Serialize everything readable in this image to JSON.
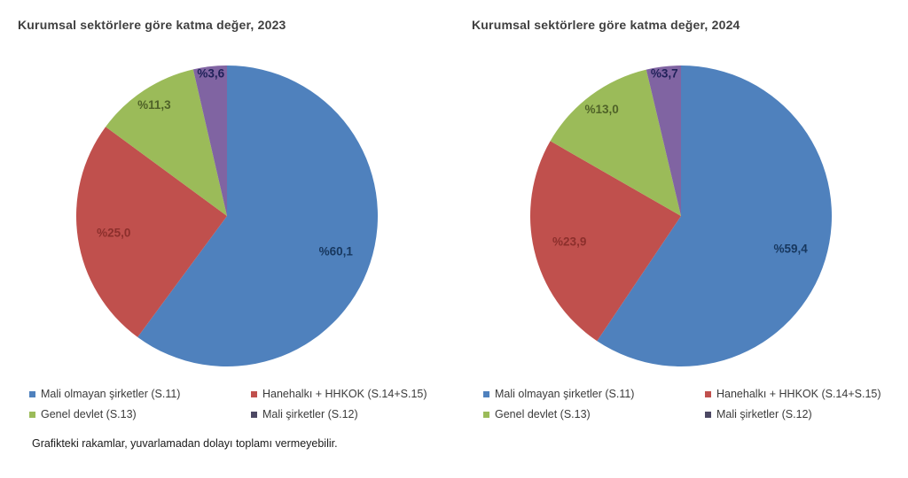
{
  "page": {
    "background": "#ffffff",
    "title_color": "#404040"
  },
  "footnote": "Grafikteki rakamlar, yuvarlamadan dolayı toplamı vermeyebilir.",
  "chart_data": [
    {
      "type": "pie",
      "title": "Kurumsal sektörlere göre katma değer, 2023",
      "labels": [
        "Mali olmayan şirketler (S.11)",
        "Hanehalkı + HHKOK (S.14+S.15)",
        "Genel devlet (S.13)",
        "Mali şirketler (S.12)"
      ],
      "values": [
        60.1,
        25.0,
        11.3,
        3.6
      ],
      "value_labels": [
        "%60,1",
        "%25,0",
        "%11,3",
        "%3,6"
      ],
      "colors": [
        "#4F81BD",
        "#C0504D",
        "#9BBB59",
        "#8064A2"
      ],
      "label_colors": [
        "#17375E",
        "#8C2F2C",
        "#4F6228",
        "#1F2159"
      ],
      "legend_marker_colors": [
        "#4F81BD",
        "#C0504D",
        "#9BBB59",
        "#4C4863"
      ],
      "start_angle_deg": 0,
      "direction": "clockwise",
      "legend_position": "bottom"
    },
    {
      "type": "pie",
      "title": "Kurumsal sektörlere göre katma değer, 2024",
      "labels": [
        "Mali olmayan şirketler (S.11)",
        "Hanehalkı + HHKOK (S.14+S.15)",
        "Genel devlet (S.13)",
        "Mali şirketler (S.12)"
      ],
      "values": [
        59.4,
        23.9,
        13.0,
        3.7
      ],
      "value_labels": [
        "%59,4",
        "%23,9",
        "%13,0",
        "%3,7"
      ],
      "colors": [
        "#4F81BD",
        "#C0504D",
        "#9BBB59",
        "#8064A2"
      ],
      "label_colors": [
        "#17375E",
        "#8C2F2C",
        "#4F6228",
        "#1F2159"
      ],
      "legend_marker_colors": [
        "#4F81BD",
        "#C0504D",
        "#9BBB59",
        "#4C4863"
      ],
      "start_angle_deg": 0,
      "direction": "clockwise",
      "legend_position": "bottom"
    }
  ]
}
